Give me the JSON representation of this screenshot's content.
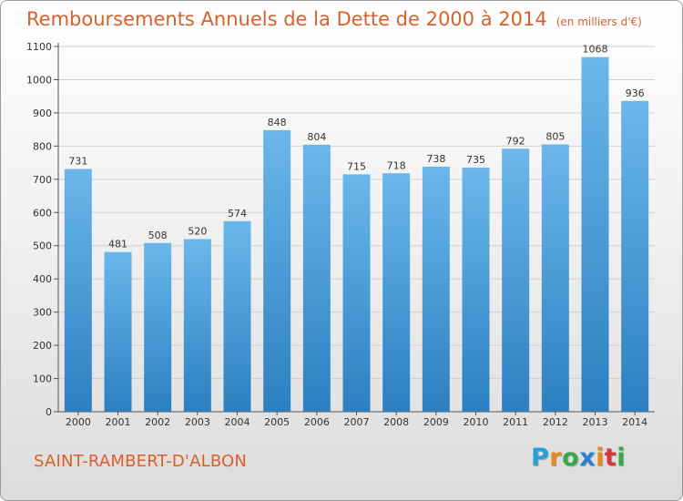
{
  "title": "Remboursements Annuels de la Dette de 2000 à 2014",
  "subtitle": "(en milliers d'€)",
  "commune": "SAINT-RAMBERT-D'ALBON",
  "logo": {
    "letters": [
      "P",
      "r",
      "o",
      "x",
      "i",
      "t",
      "i"
    ],
    "colors": [
      "#2aa0d8",
      "#e8891f",
      "#3aa84a",
      "#2a7fd0",
      "#e8891f",
      "#d23a3a",
      "#3aa84a"
    ]
  },
  "colors": {
    "bar_top": "#6bb7ec",
    "bar_bottom": "#2c7fc0",
    "title": "#d9602a"
  },
  "chart_data": {
    "type": "bar",
    "title": "Remboursements Annuels de la Dette de 2000 à 2014",
    "subtitle": "(en milliers d'€)",
    "categories": [
      "2000",
      "2001",
      "2002",
      "2003",
      "2004",
      "2005",
      "2006",
      "2007",
      "2008",
      "2009",
      "2010",
      "2011",
      "2012",
      "2013",
      "2014"
    ],
    "values": [
      731,
      481,
      508,
      520,
      574,
      848,
      804,
      715,
      718,
      738,
      735,
      792,
      805,
      1068,
      936
    ],
    "yticks": [
      0,
      100,
      200,
      300,
      400,
      500,
      600,
      700,
      800,
      900,
      1000,
      1100
    ],
    "ylim": [
      0,
      1100
    ],
    "grid": true,
    "legend": "none"
  }
}
